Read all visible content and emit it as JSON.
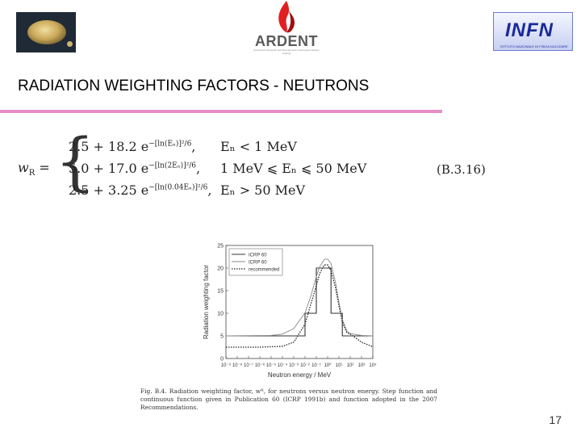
{
  "header": {
    "left_logo": {
      "icon": "university-seal-icon"
    },
    "center_logo": {
      "icon": "flame-icon",
      "name": "ARDENT",
      "tagline": "Accelerator Research and Development in European Nuclear Training"
    },
    "right_logo": {
      "name": "INFN",
      "subtitle": "ISTITUTO NAZIONALE DI FISICA NUCLEARE"
    }
  },
  "slide": {
    "title": "RADIATION WEIGHTING FACTORS - NEUTRONS",
    "accent_color": "#e88cc6",
    "page_number": "17"
  },
  "formula": {
    "lhs": "w",
    "lhs_sub": "R",
    "equation_number": "(B.3.16)",
    "rows": [
      {
        "base": "2.5 + 18.2 e",
        "exponent": "−[ln(Eₙ)]²/6",
        "tail": ",",
        "condition": "Eₙ < 1 MeV"
      },
      {
        "base": "5.0 + 17.0 e",
        "exponent": "−[ln(2Eₙ)]²/6",
        "tail": ",",
        "condition": "1 MeV ⩽ Eₙ ⩽ 50 MeV"
      },
      {
        "base": "2.5 + 3.25 e",
        "exponent": "−[ln(0.04Eₙ)]²/6",
        "tail": ",",
        "condition": "Eₙ > 50 MeV"
      }
    ]
  },
  "chart_data": {
    "type": "line",
    "ylabel": "Radiation weighting factor",
    "xlabel": "Neutron energy / MeV",
    "x_scale": "log",
    "xlim": [
      1e-09,
      10000
    ],
    "ylim": [
      0,
      25
    ],
    "y_ticks": [
      "0",
      "5",
      "10",
      "15",
      "20",
      "25"
    ],
    "x_ticks": [
      "10⁻⁹",
      "10⁻⁸",
      "10⁻⁷",
      "10⁻⁶",
      "10⁻⁵",
      "10⁻⁴",
      "10⁻³",
      "10⁻²",
      "10⁻¹",
      "10⁰",
      "10¹",
      "10²",
      "10³",
      "10⁴"
    ],
    "legend_position": "top-left",
    "series": [
      {
        "name": "ICRP 60",
        "style": "step",
        "x": [
          1e-09,
          0.01,
          0.01,
          0.1,
          0.1,
          2,
          2,
          20,
          20,
          10000
        ],
        "y": [
          5,
          5,
          10,
          10,
          20,
          20,
          10,
          10,
          5,
          5
        ]
      },
      {
        "name": "ICRP 60",
        "style": "continuous",
        "x": [
          1e-09,
          1e-05,
          0.0001,
          0.001,
          0.01,
          0.03,
          0.1,
          0.2,
          0.5,
          1,
          2,
          5,
          10,
          20,
          50,
          100,
          1000,
          10000
        ],
        "y": [
          5.0,
          5.1,
          5.4,
          6.6,
          10.1,
          13.5,
          18.1,
          20.3,
          21.9,
          22.0,
          21.0,
          16.8,
          12.4,
          8.6,
          6.1,
          5.5,
          5.1,
          5.0
        ]
      },
      {
        "name": "recommended",
        "style": "dotted",
        "x": [
          1e-09,
          1e-06,
          1e-05,
          0.0001,
          0.001,
          0.01,
          0.03,
          0.1,
          0.2,
          0.5,
          1,
          2,
          5,
          10,
          20,
          50,
          100,
          1000,
          10000
        ],
        "y": [
          2.5,
          2.5,
          2.6,
          2.7,
          3.6,
          7.6,
          11.7,
          16.1,
          18.8,
          20.7,
          20.7,
          19.5,
          15.6,
          11.7,
          8.1,
          5.7,
          5.4,
          3.6,
          2.6
        ]
      }
    ]
  },
  "caption": {
    "text": "Fig. B.4. Radiation weighting factor, wᴿ, for neutrons versus neutron energy. Step function and continuous function given in Publication 60 (ICRP 1991b) and function adopted in the 2007 Recommendations."
  }
}
